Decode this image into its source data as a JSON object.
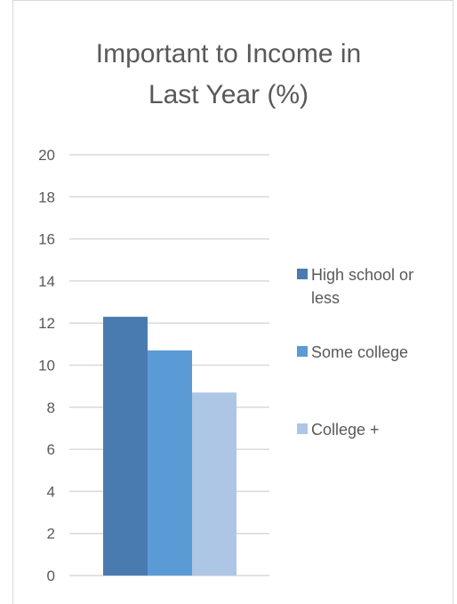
{
  "chart_data": {
    "type": "bar",
    "title_lines": [
      "Important to Income in",
      "Last Year (%)"
    ],
    "categories": [
      ""
    ],
    "series": [
      {
        "name": "High school or less",
        "legend_lines": [
          "High school or",
          "less"
        ],
        "values": [
          12.3
        ],
        "color": "#4a7bb0"
      },
      {
        "name": "Some college",
        "legend_lines": [
          "Some college"
        ],
        "values": [
          10.7
        ],
        "color": "#5b9bd5"
      },
      {
        "name": "College +",
        "legend_lines": [
          "College +"
        ],
        "values": [
          8.7
        ],
        "color": "#aec6e6"
      }
    ],
    "ylim": [
      0,
      20
    ],
    "yticks": [
      "0",
      "2",
      "4",
      "6",
      "8",
      "10",
      "12",
      "14",
      "16",
      "18",
      "20"
    ],
    "grid": true,
    "legend_position": "right"
  }
}
